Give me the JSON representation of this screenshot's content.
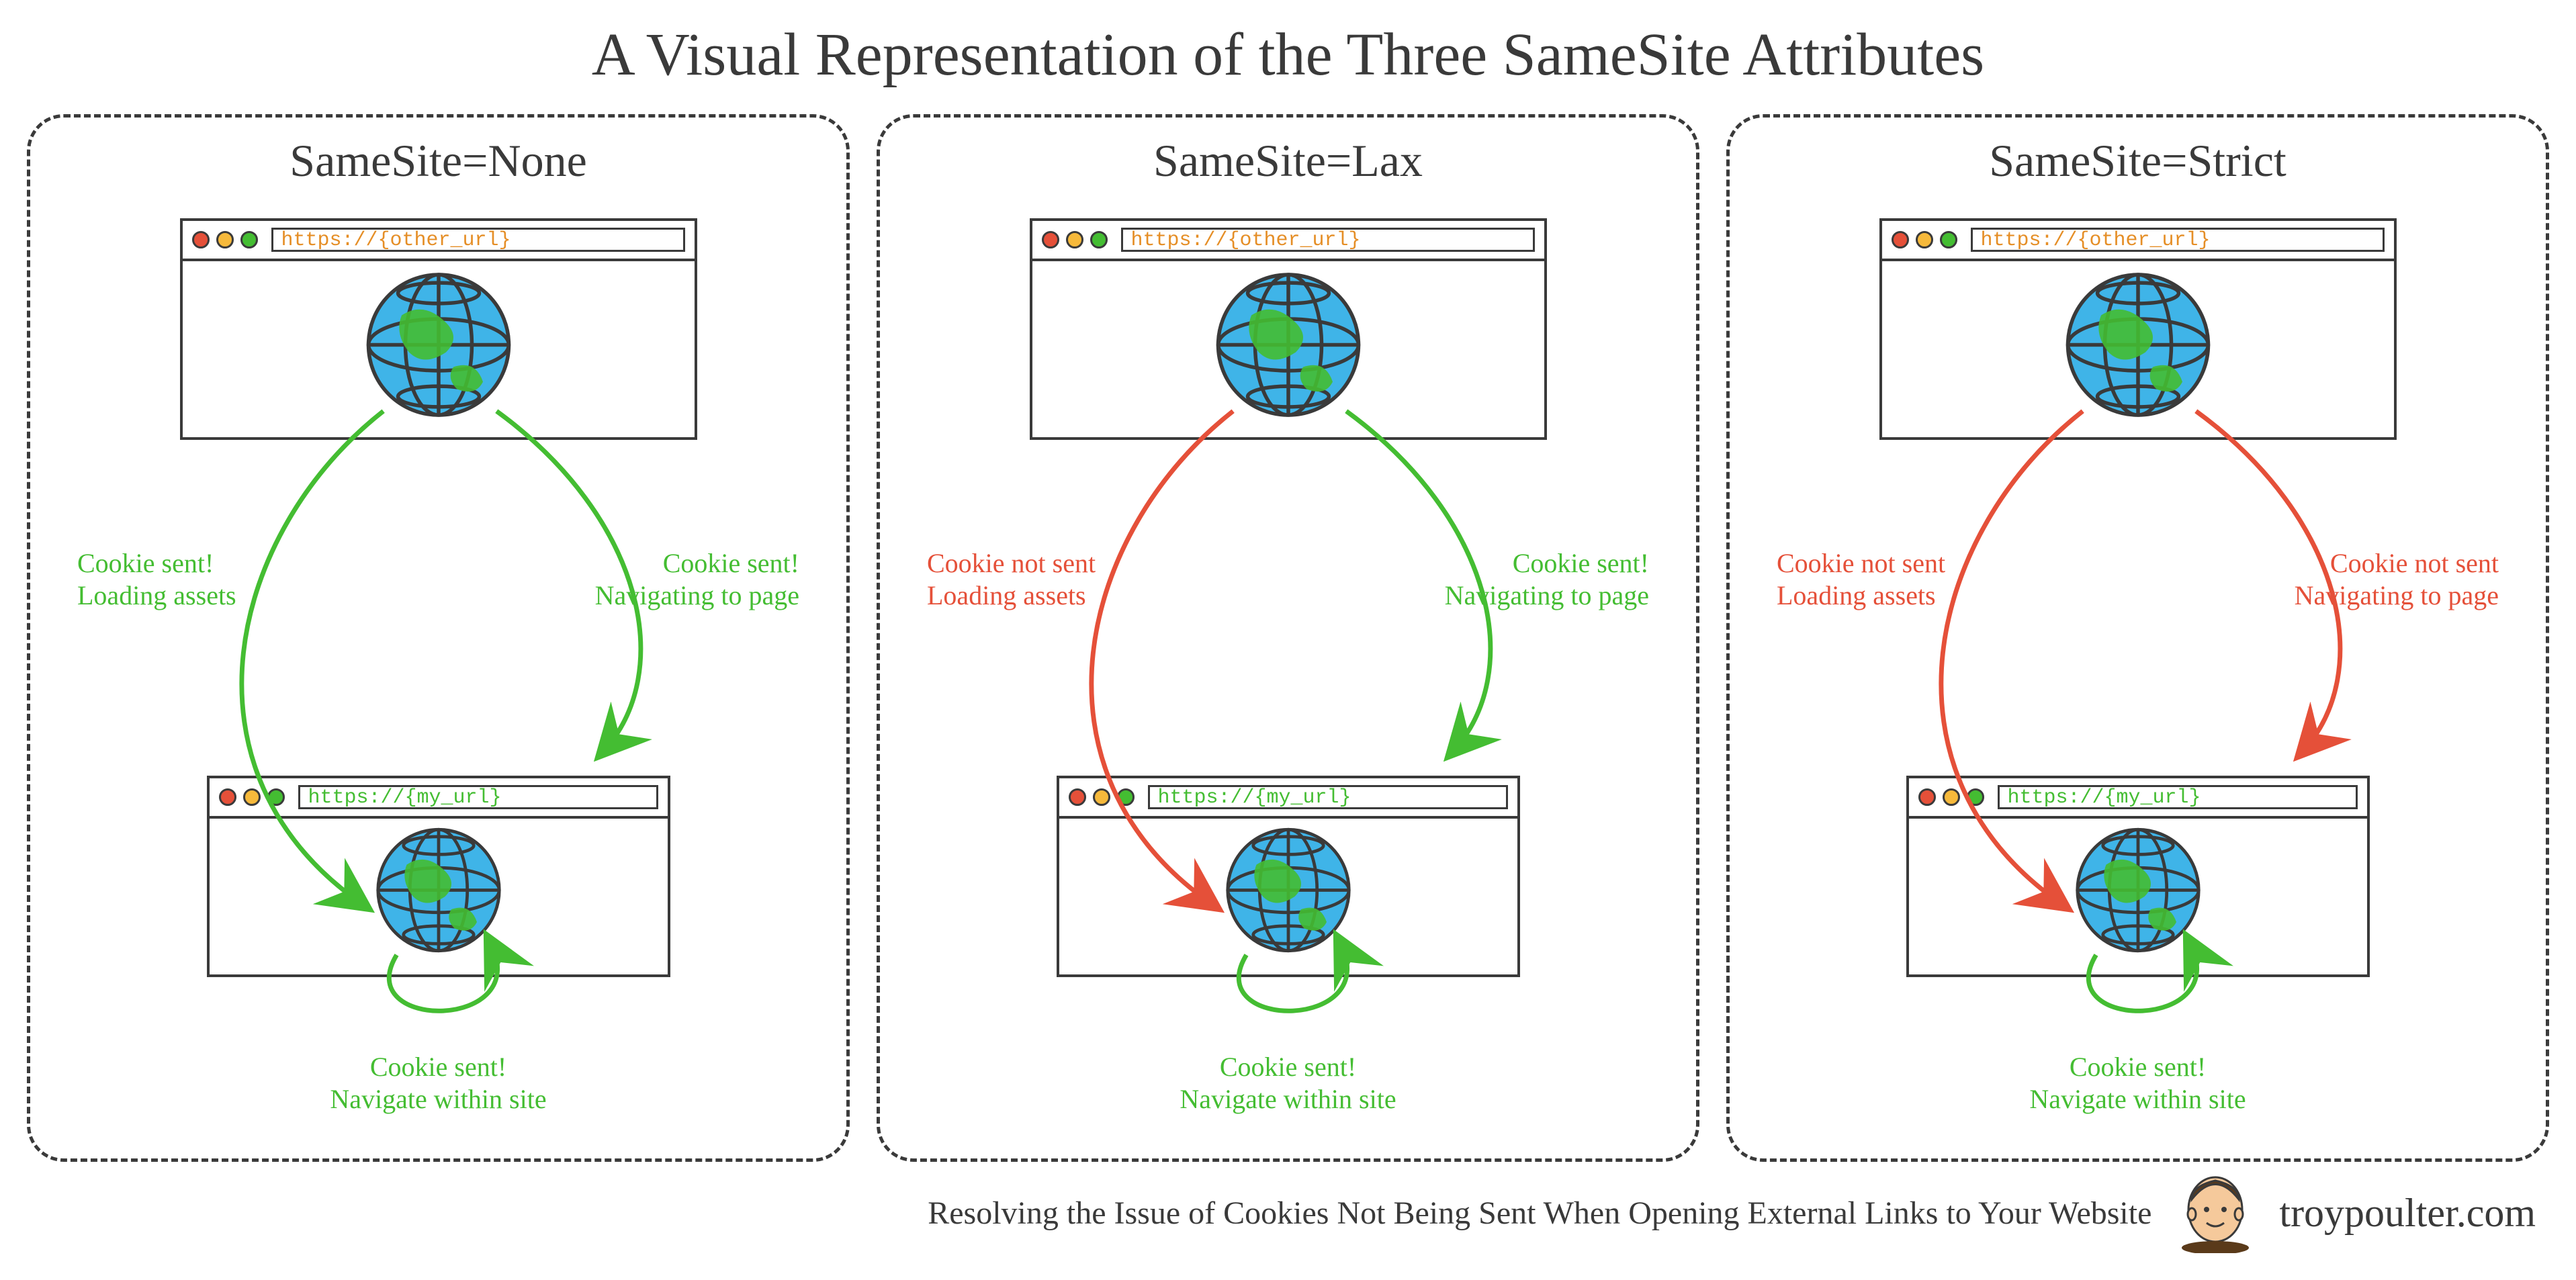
{
  "title": "A Visual Representation of the Three SameSite Attributes",
  "colors": {
    "stroke": "#3a3a3a",
    "green": "#44bd32",
    "red": "#e55039",
    "orange": "#e58e26",
    "globe_fill": "#3fb4e8",
    "globe_land": "#44bd32",
    "dot_red": "#e55039",
    "dot_yellow": "#f6b93b",
    "dot_green": "#44bd32",
    "background": "#ffffff"
  },
  "urls": {
    "other": "https://{other_url}",
    "mine": "https://{my_url}"
  },
  "panels": [
    {
      "title": "SameSite=None",
      "left_label": "Cookie sent!\nLoading assets",
      "left_color": "green",
      "right_label": "Cookie sent!\nNavigating to page",
      "right_color": "green",
      "bottom_label": "Cookie sent!\nNavigate within site",
      "bottom_color": "green",
      "arrow_left": "green",
      "arrow_right": "green",
      "arrow_loop": "green"
    },
    {
      "title": "SameSite=Lax",
      "left_label": "Cookie not sent\nLoading assets",
      "left_color": "red",
      "right_label": "Cookie sent!\nNavigating to page",
      "right_color": "green",
      "bottom_label": "Cookie sent!\nNavigate within site",
      "bottom_color": "green",
      "arrow_left": "red",
      "arrow_right": "green",
      "arrow_loop": "green"
    },
    {
      "title": "SameSite=Strict",
      "left_label": "Cookie not sent\nLoading assets",
      "left_color": "red",
      "right_label": "Cookie not sent\nNavigating to page",
      "right_color": "red",
      "bottom_label": "Cookie sent!\nNavigate within site",
      "bottom_color": "green",
      "arrow_left": "red",
      "arrow_right": "red",
      "arrow_loop": "green"
    }
  ],
  "footer": {
    "tagline": "Resolving the Issue of Cookies Not Being Sent When Opening External Links to Your Website",
    "site": "troypoulter.com"
  },
  "style": {
    "title_fontsize": 90,
    "panel_title_fontsize": 68,
    "label_fontsize": 40,
    "footer_fontsize": 48,
    "border_dash": "5px dashed",
    "border_radius": 55,
    "arrow_stroke_width": 7
  }
}
